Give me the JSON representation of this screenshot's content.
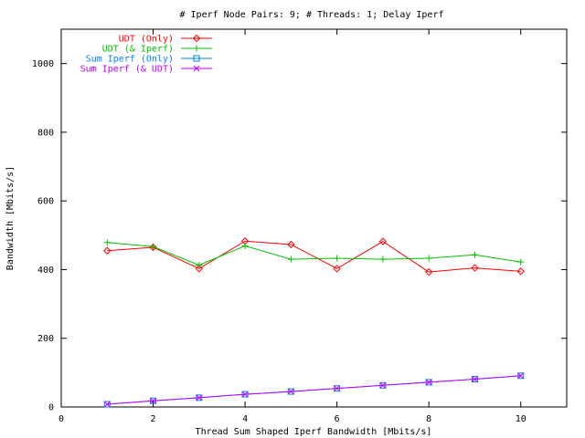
{
  "chart_data": {
    "type": "line",
    "title": "# Iperf Node Pairs: 9; # Threads: 1; Delay Iperf",
    "xlabel": "Thread Sum Shaped Iperf Bandwidth [Mbits/s]",
    "ylabel": "Bandwidth [Mbits/s]",
    "xlim": [
      0,
      11
    ],
    "ylim": [
      0,
      1100
    ],
    "xticks": [
      0,
      2,
      4,
      6,
      8,
      10
    ],
    "yticks": [
      0,
      200,
      400,
      600,
      800,
      1000
    ],
    "grid": false,
    "legend_position": "top-left",
    "series": [
      {
        "name": "UDT (Only)",
        "color": "#ff0000",
        "marker": "diamond",
        "x": [
          1,
          2,
          3,
          4,
          5,
          6,
          7,
          8,
          9,
          10
        ],
        "y": [
          455,
          465,
          403,
          483,
          473,
          403,
          482,
          393,
          405,
          395
        ]
      },
      {
        "name": "UDT (& Iperf)",
        "color": "#00c000",
        "marker": "plus",
        "x": [
          1,
          2,
          3,
          4,
          5,
          6,
          7,
          8,
          9,
          10
        ],
        "y": [
          479,
          467,
          413,
          469,
          430,
          433,
          430,
          433,
          443,
          422
        ]
      },
      {
        "name": "Sum Iperf (Only)",
        "color": "#0080ff",
        "marker": "square",
        "x": [
          1,
          2,
          3,
          4,
          5,
          6,
          7,
          8,
          9,
          10
        ],
        "y": [
          8,
          18,
          27,
          37,
          45,
          54,
          63,
          72,
          81,
          91
        ]
      },
      {
        "name": "Sum Iperf (& UDT)",
        "color": "#c000ff",
        "marker": "x",
        "x": [
          1,
          2,
          3,
          4,
          5,
          6,
          7,
          8,
          9,
          10
        ],
        "y": [
          8,
          18,
          27,
          37,
          45,
          54,
          63,
          72,
          81,
          91
        ]
      }
    ]
  }
}
